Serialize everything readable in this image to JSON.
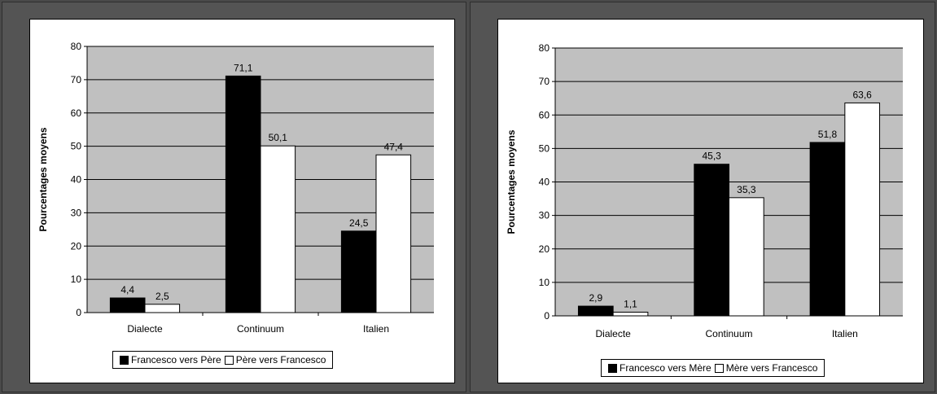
{
  "chart_data": [
    {
      "type": "bar",
      "title": "",
      "ylabel": "Pourcentages moyens",
      "xlabel": "",
      "categories": [
        "Dialecte",
        "Continuum",
        "Italien"
      ],
      "ylim": [
        0,
        80
      ],
      "yticks": [
        0,
        10,
        20,
        30,
        40,
        50,
        60,
        70,
        80
      ],
      "grid": true,
      "legend_position": "bottom",
      "series": [
        {
          "name": "Francesco vers Père",
          "color": "#000000",
          "values": [
            4.4,
            71.1,
            24.5
          ],
          "labels": [
            "4,4",
            "71,1",
            "24,5"
          ]
        },
        {
          "name": "Père vers Francesco",
          "color": "#ffffff",
          "values": [
            2.5,
            50.1,
            47.4
          ],
          "labels": [
            "2,5",
            "50,1",
            "47,4"
          ]
        }
      ]
    },
    {
      "type": "bar",
      "title": "",
      "ylabel": "Pourcentages moyens",
      "xlabel": "",
      "categories": [
        "Dialecte",
        "Continuum",
        "Italien"
      ],
      "ylim": [
        0,
        80
      ],
      "yticks": [
        0,
        10,
        20,
        30,
        40,
        50,
        60,
        70,
        80
      ],
      "grid": true,
      "legend_position": "bottom",
      "series": [
        {
          "name": "Francesco vers Mère",
          "color": "#000000",
          "values": [
            2.9,
            45.3,
            51.8
          ],
          "labels": [
            "2,9",
            "45,3",
            "51,8"
          ]
        },
        {
          "name": "Mère vers Francesco",
          "color": "#ffffff",
          "values": [
            1.1,
            35.3,
            63.6
          ],
          "labels": [
            "1,1",
            "35,3",
            "63,6"
          ]
        }
      ]
    }
  ]
}
